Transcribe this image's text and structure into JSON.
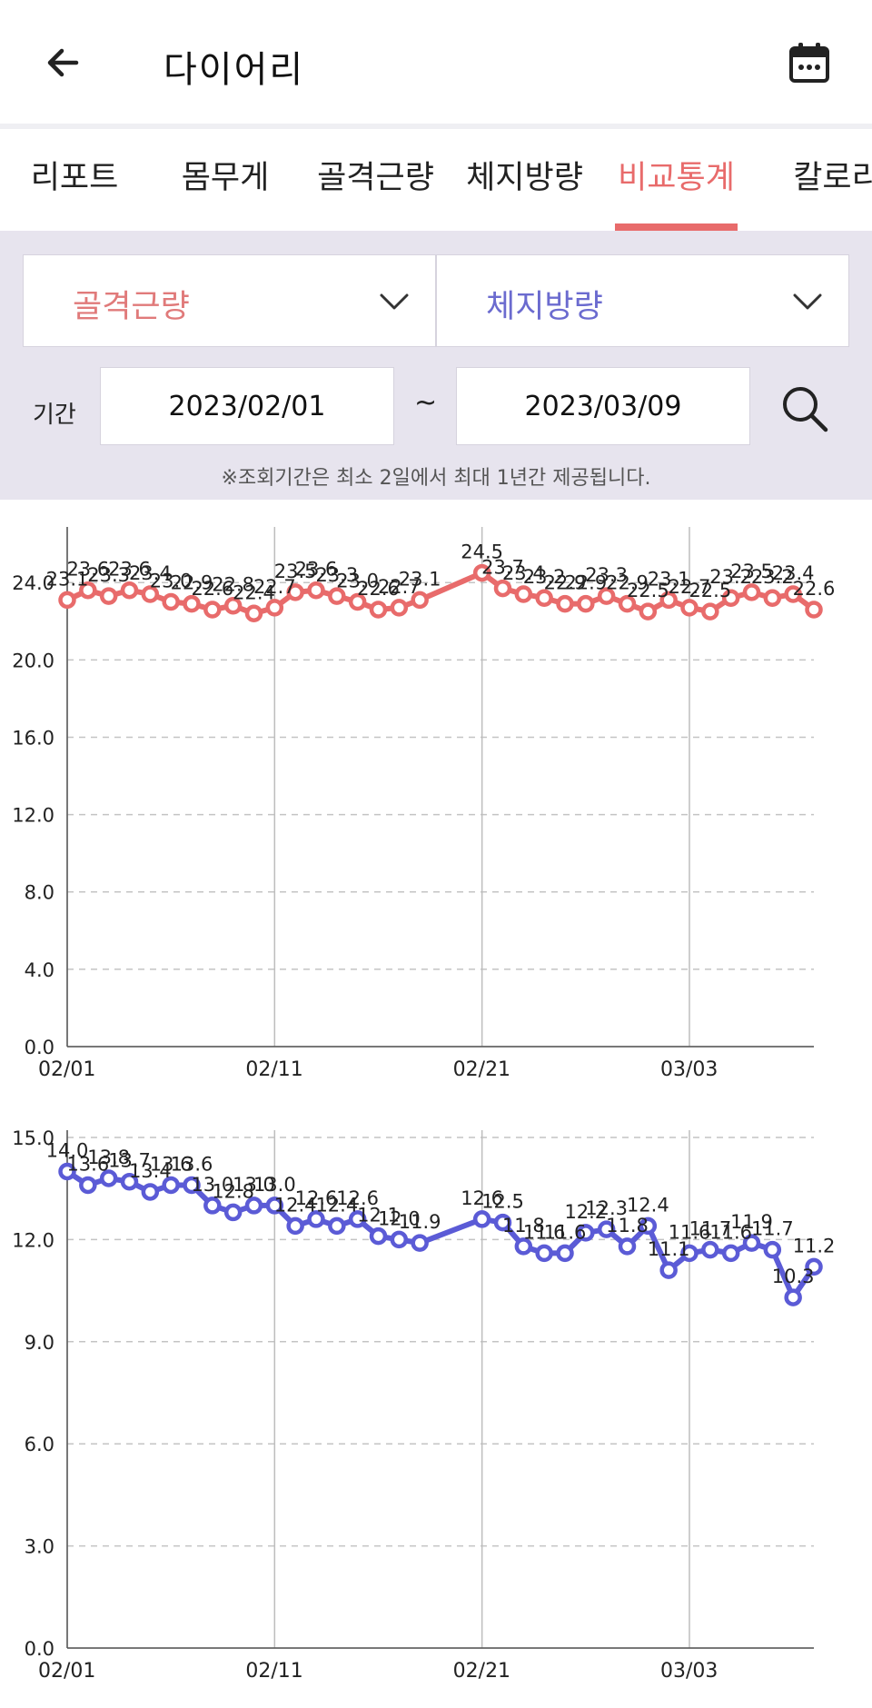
{
  "header": {
    "title": "다이어리",
    "back_icon": "arrow-left-icon",
    "calendar_icon": "calendar-icon"
  },
  "tabs": [
    {
      "label": "리포트"
    },
    {
      "label": "몸무게"
    },
    {
      "label": "골격근량"
    },
    {
      "label": "체지방량"
    },
    {
      "label": "비교통계",
      "active": true
    },
    {
      "label": "칼로리"
    }
  ],
  "filters": {
    "left_select": {
      "value": "골격근량",
      "color": "#e07a7a"
    },
    "right_select": {
      "value": "체지방량",
      "color": "#6b6bcf"
    },
    "period_label": "기간",
    "start_date": "2023/02/01",
    "separator": "~",
    "end_date": "2023/03/09",
    "notice": "※조회기간은 최소 2일에서 최대 1년간 제공됩니다."
  },
  "chart_data": [
    {
      "type": "line",
      "color": "#e86b6b",
      "ylim": [
        0,
        26.5
      ],
      "yticks": [
        0.0,
        4.0,
        8.0,
        12.0,
        16.0,
        20.0,
        24.0
      ],
      "ytick_labels": [
        "0.0",
        "4.0",
        "8.0",
        "12.0",
        "16.0",
        "20.0",
        "24.0"
      ],
      "xlim": [
        0,
        36
      ],
      "xticks": [
        0,
        10,
        20,
        30
      ],
      "xtick_labels": [
        "02/01",
        "02/11",
        "02/21",
        "03/03"
      ],
      "grid": "horizontal-dashed",
      "series": [
        {
          "x": [
            0,
            1,
            2,
            3,
            4,
            5,
            6,
            7,
            8,
            9,
            10,
            11,
            12,
            13,
            14,
            15,
            16,
            17,
            20,
            21,
            22,
            23,
            24,
            25,
            26,
            27,
            28,
            29,
            30,
            31,
            32,
            33,
            34,
            35,
            36
          ],
          "values": [
            23.1,
            23.6,
            23.3,
            23.6,
            23.4,
            23.0,
            22.9,
            22.6,
            22.8,
            22.4,
            22.7,
            23.5,
            23.6,
            23.3,
            23.0,
            22.6,
            22.7,
            23.1,
            24.5,
            23.7,
            23.4,
            23.2,
            22.9,
            22.9,
            23.3,
            22.9,
            22.5,
            23.1,
            22.7,
            22.5,
            23.2,
            23.5,
            23.2,
            23.4,
            22.6
          ],
          "labels": [
            "23.1",
            "23.6",
            "23.3",
            "23.6",
            "23.4",
            "23.0",
            "22.9",
            "22.6",
            "22.8",
            "22.4",
            "22.7",
            "23.5",
            "23.6",
            "23.3",
            "23.0",
            "22.6",
            "22.7",
            "23.1",
            "24.5",
            "23.7",
            "23.4",
            "23.2",
            "22.9",
            "22.9",
            "23.3",
            "22.9",
            "22.5",
            "23.1",
            "22.7",
            "22.5",
            "23.2",
            "23.5",
            "23.2",
            "23.4",
            "22.6"
          ]
        }
      ]
    },
    {
      "type": "line",
      "color": "#5b5bd6",
      "ylim": [
        0,
        15.0
      ],
      "yticks": [
        0.0,
        3.0,
        6.0,
        9.0,
        12.0,
        15.0
      ],
      "ytick_labels": [
        "0.0",
        "3.0",
        "6.0",
        "9.0",
        "12.0",
        "15.0"
      ],
      "xlim": [
        0,
        36
      ],
      "xticks": [
        0,
        10,
        20,
        30
      ],
      "xtick_labels": [
        "02/01",
        "02/11",
        "02/21",
        "03/03"
      ],
      "grid": "horizontal-dashed",
      "series": [
        {
          "x": [
            0,
            1,
            2,
            3,
            4,
            5,
            6,
            7,
            8,
            9,
            10,
            11,
            12,
            13,
            14,
            15,
            16,
            17,
            20,
            21,
            22,
            23,
            24,
            25,
            26,
            27,
            28,
            29,
            30,
            31,
            32,
            33,
            34,
            35,
            36
          ],
          "values": [
            14.0,
            13.6,
            13.8,
            13.7,
            13.4,
            13.6,
            13.6,
            13.0,
            12.8,
            13.0,
            13.0,
            12.4,
            12.6,
            12.4,
            12.6,
            12.1,
            12.0,
            11.9,
            12.6,
            12.5,
            11.8,
            11.6,
            11.6,
            12.2,
            12.3,
            11.8,
            12.4,
            11.1,
            11.6,
            11.7,
            11.6,
            11.9,
            11.7,
            10.3,
            11.2
          ],
          "labels": [
            "14.0",
            "13.6",
            "13.8",
            "13.7",
            "13.4",
            "13.6",
            "13.6",
            "13.0",
            "12.8",
            "13.0",
            "13.0",
            "12.4",
            "12.6",
            "12.4",
            "12.6",
            "12.1",
            "12.0",
            "11.9",
            "12.6",
            "12.5",
            "11.8",
            "11.6",
            "11.6",
            "12.2",
            "12.3",
            "11.8",
            "12.4",
            "11.1",
            "11.6",
            "11.7",
            "11.6",
            "11.9",
            "11.7",
            "10.3",
            "11.2"
          ]
        }
      ]
    }
  ]
}
